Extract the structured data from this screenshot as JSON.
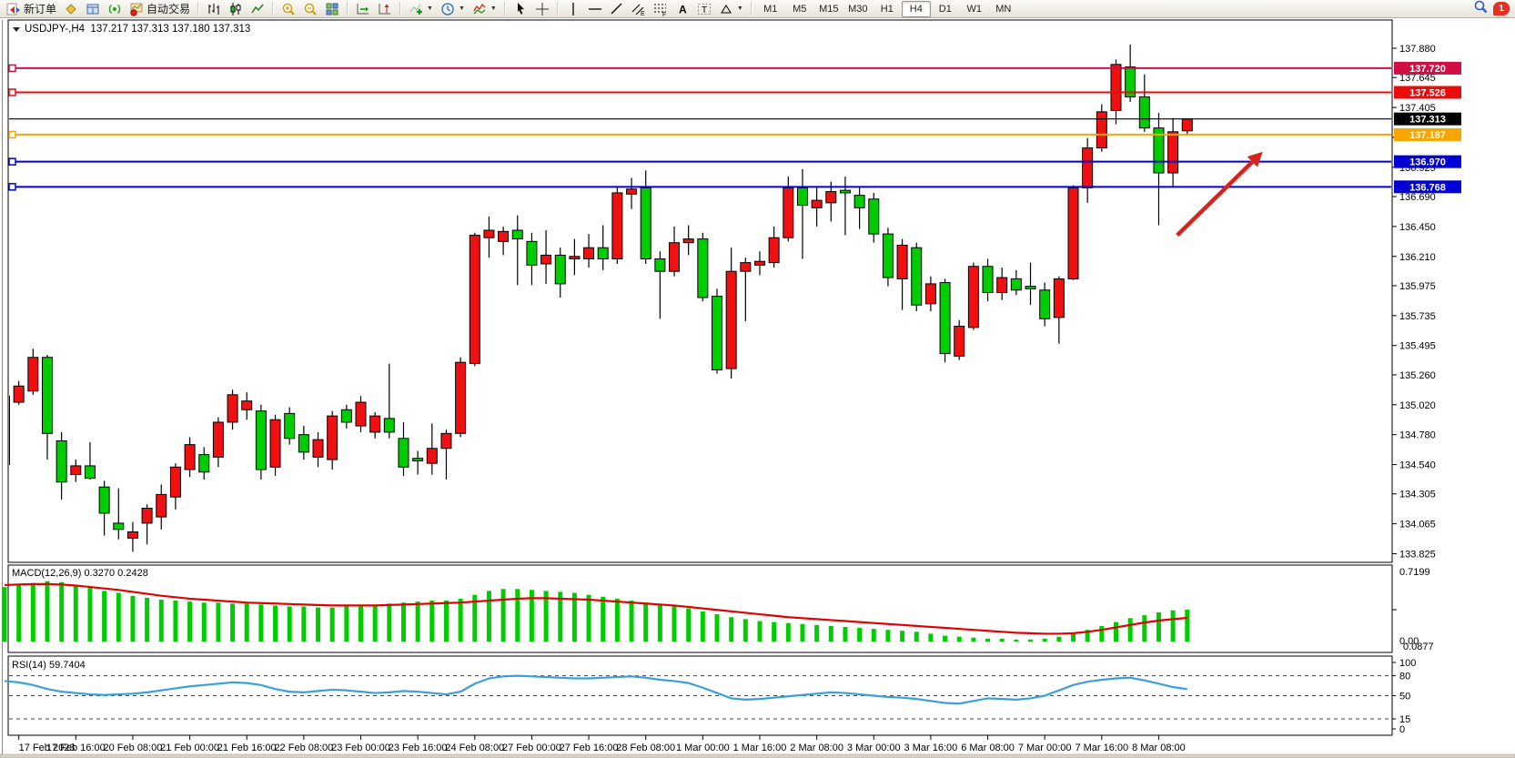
{
  "toolbar": {
    "new_order_label": "新订单",
    "autotrading_label": "自动交易",
    "notification_count": "1",
    "items": [
      {
        "icon": "new-order",
        "label_key": "new_order_label"
      },
      {
        "icon": "market-watch"
      },
      {
        "icon": "data-window"
      },
      {
        "icon": "navigator"
      },
      {
        "icon": "autotrading",
        "label_key": "autotrading_label"
      },
      {
        "sep": true
      },
      {
        "icon": "bar-chart"
      },
      {
        "icon": "candle-chart"
      },
      {
        "icon": "line-chart"
      },
      {
        "sep": true
      },
      {
        "icon": "zoom-in"
      },
      {
        "icon": "zoom-out"
      },
      {
        "icon": "tile-windows"
      },
      {
        "sep": true
      },
      {
        "icon": "auto-scroll"
      },
      {
        "icon": "chart-shift"
      },
      {
        "sep": true
      },
      {
        "icon": "indicators",
        "caret": true
      },
      {
        "icon": "periods",
        "caret": true
      },
      {
        "icon": "templates",
        "caret": true
      },
      {
        "sep": true
      },
      {
        "icon": "cursor"
      },
      {
        "icon": "crosshair"
      },
      {
        "sep": true
      },
      {
        "icon": "vertical-line"
      },
      {
        "icon": "horizontal-line"
      },
      {
        "icon": "trend-line"
      },
      {
        "icon": "channel"
      },
      {
        "icon": "fibonacci"
      },
      {
        "icon": "text"
      },
      {
        "icon": "text-label"
      },
      {
        "icon": "shapes",
        "caret": true
      },
      {
        "sep": true
      }
    ],
    "timeframes": [
      "M1",
      "M5",
      "M15",
      "M30",
      "H1",
      "H4",
      "D1",
      "W1",
      "MN"
    ],
    "active_timeframe": "H4"
  },
  "chart": {
    "title": "USDJPY-,H4  137.217 137.313 137.180 137.313",
    "symbol": "USDJPY-",
    "period": "H4"
  },
  "chart_data": {
    "type": "candlestick",
    "symbol": "USDJPY-",
    "timeframe": "H4",
    "note": "template draws bullish bodies red, bearish bodies green",
    "last_ohlc": {
      "open": "137.217",
      "high": "137.313",
      "low": "137.180",
      "close": "137.313"
    },
    "price_axis_ticks": [
      "137.880",
      "137.645",
      "137.405",
      "137.165",
      "136.925",
      "136.690",
      "136.450",
      "136.210",
      "135.975",
      "135.735",
      "135.495",
      "135.260",
      "135.020",
      "134.780",
      "134.540",
      "134.305",
      "134.065",
      "133.825"
    ],
    "time_labels": [
      "17 Feb 2023",
      "17 Feb 16:00",
      "20 Feb 08:00",
      "21 Feb 00:00",
      "21 Feb 16:00",
      "22 Feb 08:00",
      "23 Feb 00:00",
      "23 Feb 16:00",
      "24 Feb 08:00",
      "27 Feb 00:00",
      "27 Feb 16:00",
      "28 Feb 08:00",
      "1 Mar 00:00",
      "1 Mar 16:00",
      "2 Mar 08:00",
      "3 Mar 00:00",
      "3 Mar 16:00",
      "6 Mar 08:00",
      "7 Mar 00:00",
      "7 Mar 16:00",
      "8 Mar 08:00"
    ],
    "bars_per_label": 4,
    "first_label_bar_index": 1,
    "colors": {
      "bull": "#ef1111",
      "bear": "#00cd00",
      "wick": "#000000"
    },
    "candles": [
      [
        134.54,
        135.12,
        134.45,
        135.09
      ],
      [
        135.04,
        135.21,
        135.02,
        135.17
      ],
      [
        135.13,
        135.47,
        135.1,
        135.4
      ],
      [
        135.4,
        135.42,
        134.58,
        134.79
      ],
      [
        134.73,
        134.8,
        134.26,
        134.4
      ],
      [
        134.46,
        134.58,
        134.4,
        134.53
      ],
      [
        134.53,
        134.72,
        134.42,
        134.43
      ],
      [
        134.36,
        134.41,
        133.97,
        134.15
      ],
      [
        134.07,
        134.35,
        133.94,
        134.02
      ],
      [
        133.95,
        134.08,
        133.84,
        134.0
      ],
      [
        134.07,
        134.22,
        133.9,
        134.19
      ],
      [
        134.12,
        134.38,
        134.02,
        134.3
      ],
      [
        134.28,
        134.55,
        134.18,
        134.52
      ],
      [
        134.5,
        134.76,
        134.44,
        134.7
      ],
      [
        134.62,
        134.68,
        134.42,
        134.48
      ],
      [
        134.6,
        134.92,
        134.52,
        134.88
      ],
      [
        134.88,
        135.14,
        134.82,
        135.1
      ],
      [
        134.98,
        135.12,
        134.9,
        135.05
      ],
      [
        134.97,
        135.02,
        134.42,
        134.5
      ],
      [
        134.52,
        134.94,
        134.45,
        134.9
      ],
      [
        134.95,
        135.0,
        134.7,
        134.75
      ],
      [
        134.78,
        134.85,
        134.58,
        134.64
      ],
      [
        134.6,
        134.8,
        134.52,
        134.74
      ],
      [
        134.58,
        134.97,
        134.5,
        134.93
      ],
      [
        134.98,
        135.02,
        134.83,
        134.88
      ],
      [
        134.85,
        135.09,
        134.8,
        135.04
      ],
      [
        134.8,
        134.96,
        134.75,
        134.93
      ],
      [
        134.91,
        135.35,
        134.75,
        134.8
      ],
      [
        134.75,
        134.88,
        134.45,
        134.52
      ],
      [
        134.59,
        134.65,
        134.46,
        134.57
      ],
      [
        134.55,
        134.87,
        134.46,
        134.67
      ],
      [
        134.67,
        134.82,
        134.42,
        134.79
      ],
      [
        134.79,
        135.4,
        134.76,
        135.36
      ],
      [
        135.35,
        136.4,
        135.33,
        136.38
      ],
      [
        136.36,
        136.53,
        136.2,
        136.42
      ],
      [
        136.33,
        136.45,
        136.22,
        136.41
      ],
      [
        136.42,
        136.54,
        135.98,
        136.35
      ],
      [
        136.33,
        136.4,
        135.98,
        136.14
      ],
      [
        136.15,
        136.42,
        135.99,
        136.22
      ],
      [
        136.22,
        136.28,
        135.88,
        135.99
      ],
      [
        136.19,
        136.35,
        136.06,
        136.21
      ],
      [
        136.19,
        136.39,
        136.12,
        136.28
      ],
      [
        136.28,
        136.46,
        136.1,
        136.19
      ],
      [
        136.19,
        136.77,
        136.15,
        136.72
      ],
      [
        136.71,
        136.84,
        136.59,
        136.75
      ],
      [
        136.76,
        136.9,
        136.15,
        136.19
      ],
      [
        136.19,
        136.25,
        135.71,
        136.09
      ],
      [
        136.09,
        136.45,
        136.05,
        136.32
      ],
      [
        136.32,
        136.46,
        136.22,
        136.35
      ],
      [
        136.35,
        136.4,
        135.85,
        135.88
      ],
      [
        135.89,
        135.95,
        135.27,
        135.3
      ],
      [
        135.31,
        136.28,
        135.23,
        136.09
      ],
      [
        136.09,
        136.2,
        135.69,
        136.16
      ],
      [
        136.14,
        136.25,
        136.06,
        136.17
      ],
      [
        136.16,
        136.45,
        136.12,
        136.36
      ],
      [
        136.36,
        136.85,
        136.33,
        136.76
      ],
      [
        136.76,
        136.91,
        136.19,
        136.62
      ],
      [
        136.6,
        136.76,
        136.45,
        136.66
      ],
      [
        136.64,
        136.81,
        136.49,
        136.73
      ],
      [
        136.74,
        136.85,
        136.38,
        136.72
      ],
      [
        136.7,
        136.76,
        136.43,
        136.6
      ],
      [
        136.67,
        136.72,
        136.32,
        136.39
      ],
      [
        136.39,
        136.44,
        135.97,
        136.04
      ],
      [
        136.03,
        136.35,
        135.78,
        136.3
      ],
      [
        136.28,
        136.32,
        135.77,
        135.82
      ],
      [
        135.83,
        136.05,
        135.77,
        135.99
      ],
      [
        136.0,
        136.03,
        135.36,
        135.43
      ],
      [
        135.41,
        135.7,
        135.38,
        135.65
      ],
      [
        135.64,
        136.16,
        135.62,
        136.13
      ],
      [
        136.13,
        136.19,
        135.85,
        135.92
      ],
      [
        135.92,
        136.12,
        135.86,
        136.04
      ],
      [
        136.03,
        136.1,
        135.9,
        135.94
      ],
      [
        135.97,
        136.16,
        135.82,
        135.95
      ],
      [
        135.94,
        136.0,
        135.65,
        135.71
      ],
      [
        135.72,
        136.05,
        135.51,
        136.03
      ],
      [
        136.03,
        136.78,
        136.02,
        136.76
      ],
      [
        136.76,
        137.16,
        136.64,
        137.08
      ],
      [
        137.08,
        137.43,
        137.05,
        137.37
      ],
      [
        137.38,
        137.79,
        137.27,
        137.75
      ],
      [
        137.73,
        137.91,
        137.45,
        137.49
      ],
      [
        137.49,
        137.67,
        137.21,
        137.24
      ],
      [
        137.24,
        137.36,
        136.46,
        136.88
      ],
      [
        136.88,
        137.32,
        136.77,
        137.21
      ],
      [
        137.217,
        137.313,
        137.18,
        137.313
      ]
    ],
    "levels": [
      {
        "price": 137.72,
        "label": "137.720",
        "color": "#cf1044",
        "handle": true
      },
      {
        "price": 137.526,
        "label": "137.526",
        "color": "#ea0b0b",
        "handle": true
      },
      {
        "price": 137.313,
        "label": "137.313",
        "color": "#000000",
        "handle": false,
        "current_price": true
      },
      {
        "price": 137.187,
        "label": "137.187",
        "color": "#f7a600",
        "handle": true
      },
      {
        "price": 136.97,
        "label": "136.970",
        "color": "#0000d4",
        "handle": true
      },
      {
        "price": 136.768,
        "label": "136.768",
        "color": "#0000d4",
        "handle": true
      }
    ],
    "macd": {
      "full_label": "MACD(12,26,9) 0.3270 0.2428",
      "main_value": "0.3270",
      "signal_value": "0.2428",
      "axis_labels": [
        "0.7199",
        "0.00",
        "0.0877"
      ],
      "hist_color": "#00cd00",
      "signal_color": "#e00202",
      "histogram": [
        0.56,
        0.58,
        0.6,
        0.62,
        0.61,
        0.58,
        0.55,
        0.52,
        0.5,
        0.47,
        0.45,
        0.43,
        0.42,
        0.41,
        0.4,
        0.4,
        0.39,
        0.39,
        0.38,
        0.37,
        0.36,
        0.36,
        0.35,
        0.35,
        0.36,
        0.37,
        0.38,
        0.39,
        0.4,
        0.41,
        0.42,
        0.42,
        0.44,
        0.48,
        0.52,
        0.54,
        0.54,
        0.53,
        0.52,
        0.51,
        0.5,
        0.48,
        0.46,
        0.44,
        0.42,
        0.4,
        0.38,
        0.36,
        0.34,
        0.31,
        0.28,
        0.25,
        0.23,
        0.21,
        0.2,
        0.19,
        0.18,
        0.17,
        0.16,
        0.15,
        0.14,
        0.13,
        0.12,
        0.11,
        0.1,
        0.08,
        0.06,
        0.05,
        0.04,
        0.03,
        0.03,
        0.02,
        0.02,
        0.03,
        0.05,
        0.08,
        0.12,
        0.16,
        0.2,
        0.24,
        0.27,
        0.3,
        0.32,
        0.327
      ],
      "signal": [
        0.58,
        0.585,
        0.59,
        0.59,
        0.585,
        0.575,
        0.56,
        0.545,
        0.53,
        0.51,
        0.49,
        0.47,
        0.455,
        0.44,
        0.43,
        0.42,
        0.41,
        0.4,
        0.395,
        0.39,
        0.385,
        0.38,
        0.375,
        0.37,
        0.37,
        0.37,
        0.37,
        0.375,
        0.38,
        0.385,
        0.39,
        0.395,
        0.4,
        0.41,
        0.42,
        0.43,
        0.44,
        0.445,
        0.445,
        0.44,
        0.435,
        0.43,
        0.42,
        0.41,
        0.4,
        0.39,
        0.38,
        0.37,
        0.355,
        0.34,
        0.325,
        0.31,
        0.295,
        0.28,
        0.265,
        0.25,
        0.24,
        0.23,
        0.22,
        0.21,
        0.2,
        0.19,
        0.18,
        0.17,
        0.16,
        0.15,
        0.14,
        0.13,
        0.12,
        0.11,
        0.1,
        0.09,
        0.085,
        0.08,
        0.08,
        0.085,
        0.1,
        0.12,
        0.145,
        0.17,
        0.195,
        0.215,
        0.23,
        0.2428
      ]
    },
    "rsi": {
      "full_label": "RSI(14) 59.7404",
      "value": "59.7404",
      "levels": [
        80,
        50,
        15
      ],
      "axis_labels": [
        "100",
        "80",
        "50",
        "15",
        "0"
      ],
      "line_color": "#3aa0d8",
      "range": [
        0,
        100
      ],
      "values": [
        72,
        70,
        66,
        60,
        56,
        54,
        52,
        51,
        52,
        53,
        55,
        58,
        61,
        64,
        66,
        68,
        70,
        69,
        66,
        60,
        56,
        55,
        57,
        59,
        58,
        56,
        54,
        55,
        57,
        56,
        54,
        52,
        56,
        68,
        76,
        79,
        80,
        79,
        78,
        77,
        76,
        76,
        77,
        78,
        79,
        77,
        74,
        72,
        69,
        62,
        54,
        46,
        44,
        45,
        47,
        49,
        51,
        53,
        55,
        54,
        52,
        50,
        48,
        47,
        45,
        42,
        39,
        38,
        42,
        46,
        45,
        44,
        46,
        50,
        58,
        66,
        71,
        74,
        76,
        77,
        73,
        68,
        63,
        59.74
      ]
    },
    "annotations": {
      "arrow": {
        "x1_bar": 82.3,
        "price1": 136.38,
        "x2_bar": 88.3,
        "price2": 137.05,
        "color": "#d8231d"
      }
    }
  }
}
